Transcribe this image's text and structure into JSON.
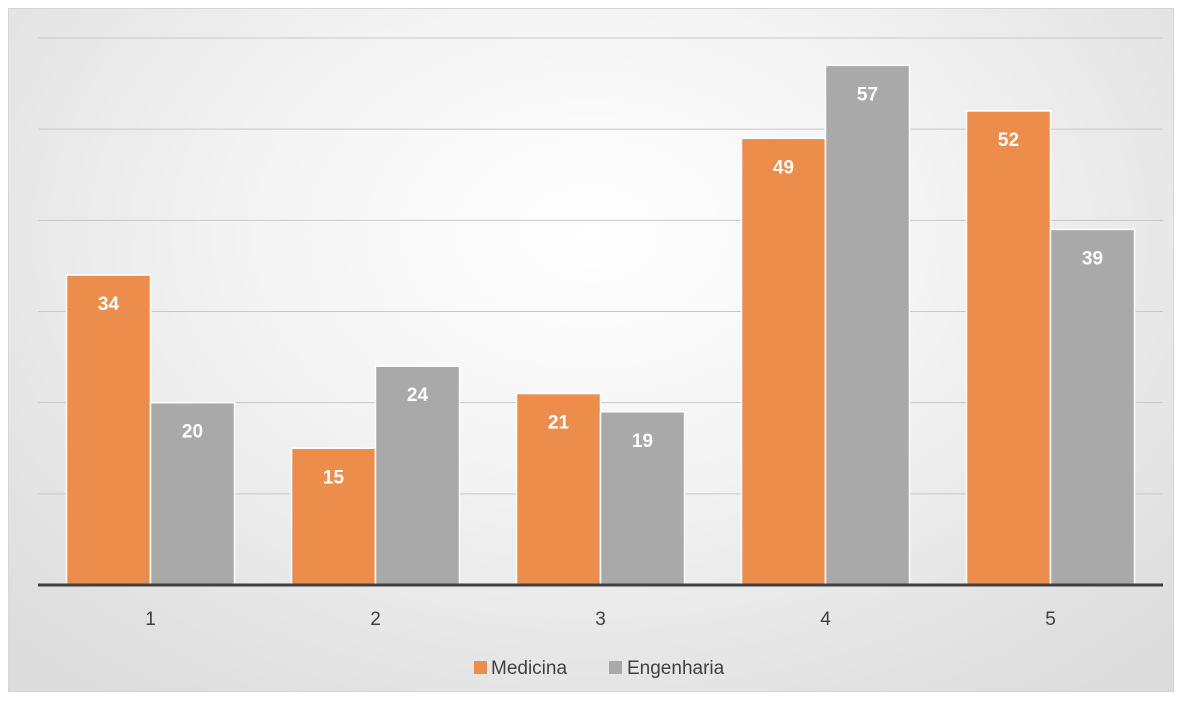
{
  "chart_data": {
    "type": "bar",
    "categories": [
      "1",
      "2",
      "3",
      "4",
      "5"
    ],
    "series": [
      {
        "name": "Medicina",
        "values": [
          34,
          15,
          21,
          49,
          52
        ]
      },
      {
        "name": "Engenharia",
        "values": [
          20,
          24,
          19,
          57,
          39
        ]
      }
    ],
    "colors": {
      "Medicina": "#ED8D4B",
      "Engenharia": "#A9A9A9"
    },
    "ylim": [
      0,
      60
    ],
    "gridlines": true,
    "data_labels": true,
    "legend_position": "bottom",
    "title": "",
    "xlabel": "",
    "ylabel": ""
  }
}
